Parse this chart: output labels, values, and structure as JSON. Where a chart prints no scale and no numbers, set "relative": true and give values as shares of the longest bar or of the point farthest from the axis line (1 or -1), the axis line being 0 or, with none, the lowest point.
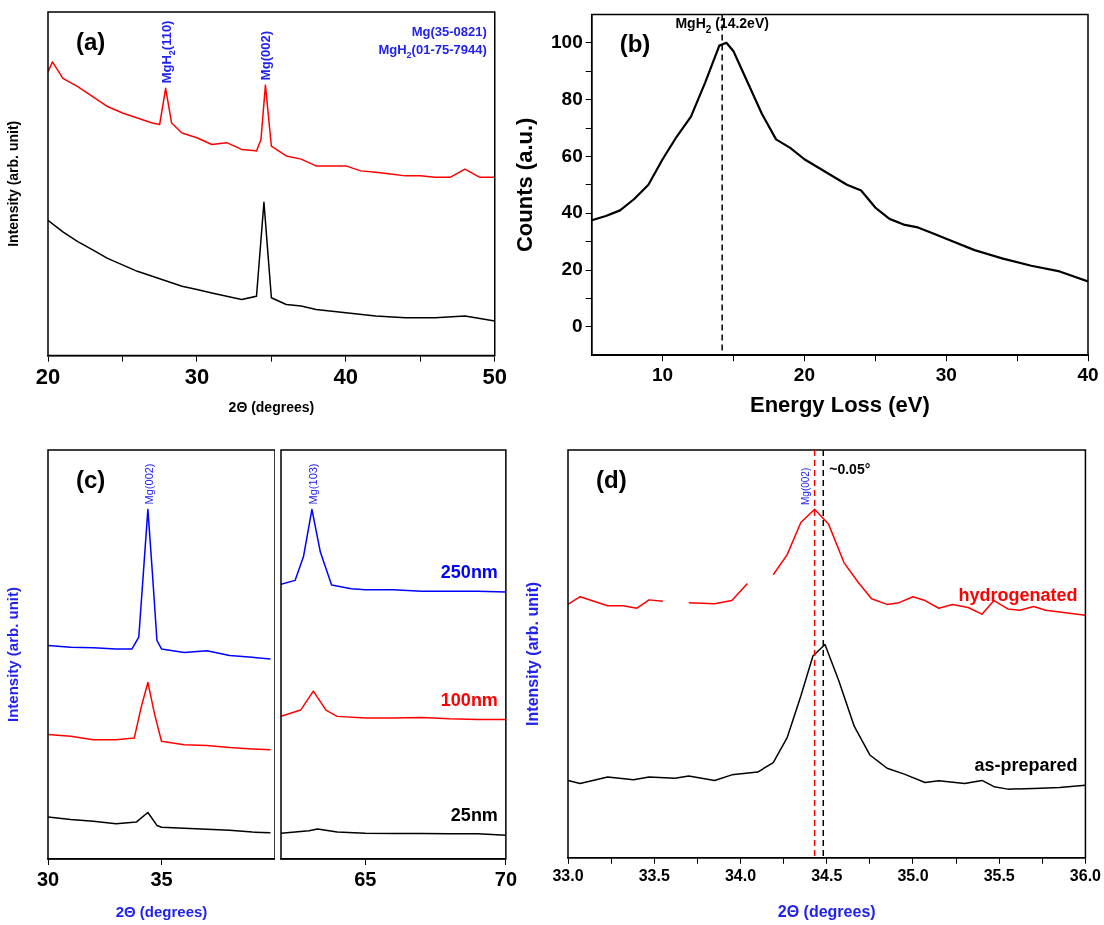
{
  "chart_data": [
    {
      "type": "line",
      "relative": true,
      "marker": "none",
      "tick_labels": "x",
      "xlabel": "2Θ (degrees)",
      "ylabel": "Intensity (arb. unit)",
      "xlim": [
        20,
        50
      ],
      "xticks": [
        20,
        {
          "value": 25,
          "label": null
        },
        30,
        {
          "value": 35,
          "label": null
        },
        40,
        {
          "value": 45,
          "label": null
        },
        50
      ],
      "annotations": [
        "(a)",
        "Mg(35-0821)",
        "MgH$_{2}$(01-75-7944)",
        {
          "text": "MgH$_{2}$(110)",
          "x": 27.9,
          "y": 0.91
        },
        {
          "text": "Mg(002)",
          "x": 34.6,
          "y": 0.921
        }
      ],
      "x": [
        20,
        20.3,
        21,
        22,
        23,
        24,
        25,
        26,
        27,
        27.5,
        27.9,
        28.3,
        29,
        30,
        31,
        32,
        33,
        34,
        34.3,
        34.6,
        35,
        36,
        37,
        38,
        39,
        40,
        41,
        42,
        43,
        44,
        45,
        46,
        47,
        48,
        49,
        50
      ],
      "series": [
        {
          "color": "#ff0000",
          "values": [
            0.966,
            1.0,
            0.944,
            0.916,
            0.882,
            0.848,
            0.826,
            0.809,
            0.792,
            0.787,
            0.91,
            0.792,
            0.758,
            0.742,
            0.719,
            0.725,
            0.702,
            0.697,
            0.736,
            0.921,
            0.713,
            0.68,
            0.669,
            0.646,
            0.646,
            0.646,
            0.629,
            0.624,
            0.618,
            0.612,
            0.612,
            0.607,
            0.607,
            0.635,
            0.607,
            0.607
          ]
        },
        {
          "color": "#000000",
          "x": [
            20,
            21,
            22,
            23,
            24,
            25,
            26,
            27,
            28,
            29,
            30,
            31,
            32,
            33,
            34,
            34.5,
            35,
            36,
            37,
            38,
            40,
            42,
            44,
            46,
            48,
            50
          ],
          "values": [
            0.461,
            0.421,
            0.388,
            0.36,
            0.331,
            0.309,
            0.287,
            0.27,
            0.253,
            0.236,
            0.225,
            0.213,
            0.202,
            0.191,
            0.202,
            0.522,
            0.197,
            0.174,
            0.169,
            0.157,
            0.146,
            0.135,
            0.129,
            0.129,
            0.135,
            0.118
          ]
        }
      ]
    },
    {
      "type": "line",
      "marker": "none",
      "xlabel": "Energy Loss (eV)",
      "ylabel": "Counts (a.u.)",
      "xlim": [
        5,
        40
      ],
      "xticks": [
        10,
        {
          "value": 15,
          "label": null
        },
        20,
        {
          "value": 25,
          "label": null
        },
        30,
        {
          "value": 35,
          "label": null
        },
        40
      ],
      "ylim": [
        -10,
        110
      ],
      "yticks": [
        0,
        {
          "value": 10,
          "label": null
        },
        20,
        {
          "value": 30,
          "label": null
        },
        40,
        {
          "value": 50,
          "label": null
        },
        60,
        {
          "value": 70,
          "label": null
        },
        80,
        {
          "value": 90,
          "label": null
        },
        100
      ],
      "annotations": [
        "(b)"
      ],
      "ref_lines": [
        {
          "axis": "x",
          "value": 14.2,
          "label": "MgH$_{2}$ (14.2eV)",
          "color": "#000000",
          "line_style": "dashed"
        }
      ],
      "x": [
        5,
        6,
        7,
        8,
        9,
        10,
        11,
        12,
        13,
        14,
        14.5,
        15,
        16,
        17,
        18,
        19,
        20,
        21,
        22,
        23,
        24,
        25,
        26,
        27,
        28,
        29,
        30,
        32,
        34,
        36,
        38,
        40
      ],
      "series": [
        {
          "color": "#000000",
          "values": [
            37.5,
            39,
            41,
            45,
            50,
            59,
            67,
            74,
            86,
            99,
            100,
            97,
            86,
            75,
            66,
            63,
            59,
            56,
            53,
            50,
            48,
            42,
            38,
            36,
            35,
            33,
            31,
            27,
            24,
            21.5,
            19.5,
            16
          ]
        }
      ]
    },
    {
      "type": "line",
      "relative": true,
      "marker": "none",
      "tick_labels": "x",
      "xlabel": "2Θ (degrees)",
      "ylabel": "Intensity (arb. unit)",
      "xlim": [
        30,
        40
      ],
      "xticks": [
        30,
        35
      ],
      "annotations": [
        "(c)",
        {
          "text": "Mg(002)",
          "x": 34.4,
          "y": 1.0
        }
      ],
      "series": [
        {
          "color": "#0000ff",
          "x": [
            30,
            31,
            32,
            33,
            33.7,
            34,
            34.2,
            34.4,
            34.6,
            34.8,
            35,
            36,
            37,
            38,
            39,
            39.8
          ],
          "values": [
            0.611,
            0.606,
            0.604,
            0.601,
            0.601,
            0.635,
            0.817,
            1.0,
            0.817,
            0.625,
            0.601,
            0.591,
            0.596,
            0.582,
            0.577,
            0.572
          ]
        },
        {
          "color": "#ff0000",
          "x": [
            30,
            31,
            32,
            33,
            33.8,
            34.1,
            34.4,
            34.7,
            35,
            36,
            37,
            38,
            39,
            39.8
          ],
          "values": [
            0.356,
            0.351,
            0.341,
            0.341,
            0.346,
            0.433,
            0.505,
            0.413,
            0.337,
            0.327,
            0.325,
            0.319,
            0.315,
            0.3125
          ]
        },
        {
          "color": "#000000",
          "x": [
            30,
            31,
            32,
            33,
            33.9,
            34.4,
            34.8,
            35,
            36,
            37,
            38,
            39,
            39.8
          ],
          "values": [
            0.12,
            0.113,
            0.108,
            0.101,
            0.106,
            0.133,
            0.096,
            0.091,
            0.088,
            0.085,
            0.082,
            0.077,
            0.075
          ]
        }
      ]
    },
    {
      "type": "line",
      "relative": true,
      "marker": "none",
      "tick_labels": "x",
      "xlim": [
        62,
        70
      ],
      "xticks": [
        65,
        70
      ],
      "annotations": [
        {
          "text": "Mg(103)",
          "x": 63.1,
          "y": 1.0
        }
      ],
      "series": [
        {
          "name": "250nm",
          "color": "#0000ff",
          "x": [
            62,
            62.5,
            62.8,
            63.1,
            63.4,
            63.8,
            64.5,
            65,
            66,
            67,
            68,
            69,
            70
          ],
          "values": [
            0.786,
            0.797,
            0.865,
            1.0,
            0.878,
            0.784,
            0.773,
            0.77,
            0.77,
            0.766,
            0.766,
            0.766,
            0.764
          ]
        },
        {
          "name": "100nm",
          "color": "#ff0000",
          "x": [
            62,
            62.7,
            63.15,
            63.6,
            64,
            65,
            66,
            67,
            68,
            69,
            70
          ],
          "values": [
            0.408,
            0.426,
            0.48,
            0.426,
            0.408,
            0.403,
            0.403,
            0.405,
            0.401,
            0.399,
            0.399
          ]
        },
        {
          "name": "25nm",
          "color": "#000000",
          "x": [
            62,
            63,
            63.3,
            64,
            65,
            66,
            67,
            68,
            69,
            70
          ],
          "values": [
            0.074,
            0.081,
            0.086,
            0.077,
            0.074,
            0.073,
            0.073,
            0.072,
            0.072,
            0.068
          ]
        }
      ]
    },
    {
      "type": "line",
      "relative": true,
      "marker": "none",
      "tick_labels": "x",
      "xlabel": "2Θ (degrees)",
      "ylabel": "Intensity (arb. unit)",
      "xlim": [
        33,
        36
      ],
      "xticks": [
        {
          "value": 33,
          "label": "33.0"
        },
        {
          "value": 33.25,
          "label": null
        },
        {
          "value": 33.5,
          "label": "33.5"
        },
        {
          "value": 33.75,
          "label": null
        },
        {
          "value": 34,
          "label": "34.0"
        },
        {
          "value": 34.25,
          "label": null
        },
        {
          "value": 34.5,
          "label": "34.5"
        },
        {
          "value": 34.75,
          "label": null
        },
        {
          "value": 35,
          "label": "35.0"
        },
        {
          "value": 35.25,
          "label": null
        },
        {
          "value": 35.5,
          "label": "35.5"
        },
        {
          "value": 35.75,
          "label": null
        },
        {
          "value": 36,
          "label": "36.0"
        }
      ],
      "annotations": [
        "(d)",
        {
          "text": "~0.05°",
          "x": 34.48
        }
      ],
      "ref_lines": [
        {
          "axis": "x",
          "value": 34.43,
          "label": "Mg(002)",
          "color": "#ff0000",
          "line_style": "dashed"
        },
        {
          "axis": "x",
          "value": 34.48,
          "color": "#000000",
          "line_style": "dashed"
        }
      ],
      "series": [
        {
          "name": "hydrogenated",
          "color": "#ff0000",
          "x": [
            33,
            33.07,
            33.23,
            33.32,
            33.4,
            33.47,
            33.55,
            33.62,
            33.7,
            33.85,
            33.95,
            34.04,
            34.12,
            34.19,
            34.27,
            34.35,
            34.43,
            34.51,
            34.6,
            34.68,
            34.76,
            34.85,
            34.92,
            35,
            35.07,
            35.15,
            35.23,
            35.32,
            35.4,
            35.47,
            35.55,
            35.62,
            35.7,
            35.77,
            35.85,
            36
          ],
          "values": [
            0.727,
            0.749,
            0.723,
            0.723,
            0.716,
            0.74,
            0.736,
            null,
            0.732,
            0.729,
            0.738,
            0.787,
            null,
            0.812,
            0.869,
            0.962,
            1.0,
            0.958,
            0.847,
            0.792,
            0.743,
            0.727,
            0.732,
            0.749,
            0.738,
            0.716,
            0.727,
            0.718,
            0.699,
            0.738,
            0.714,
            0.71,
            0.721,
            0.71,
            0.705,
            0.696
          ]
        },
        {
          "name": "as-prepared",
          "color": "#000000",
          "x": [
            33,
            33.07,
            33.23,
            33.38,
            33.47,
            33.62,
            33.7,
            33.85,
            33.95,
            34.1,
            34.19,
            34.27,
            34.35,
            34.42,
            34.49,
            34.57,
            34.66,
            34.75,
            34.85,
            34.95,
            35.07,
            35.15,
            35.3,
            35.4,
            35.47,
            35.55,
            35.7,
            35.85,
            36
          ],
          "values": [
            0.222,
            0.213,
            0.232,
            0.224,
            0.232,
            0.228,
            0.235,
            0.222,
            0.238,
            0.246,
            0.273,
            0.344,
            0.464,
            0.579,
            0.612,
            0.508,
            0.377,
            0.295,
            0.257,
            0.24,
            0.216,
            0.221,
            0.213,
            0.222,
            0.204,
            0.197,
            0.199,
            0.202,
            0.208
          ]
        }
      ]
    }
  ]
}
